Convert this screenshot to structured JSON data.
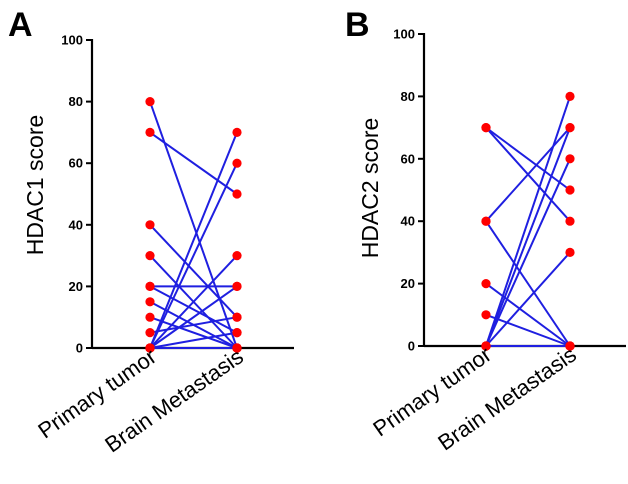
{
  "chart_data": [
    {
      "type": "line",
      "panel": "A",
      "ylabel": "HDAC1 score",
      "categories": [
        "Primary tumor",
        "Brain Metastasis"
      ],
      "ylim": [
        0,
        100
      ],
      "yticks": [
        0,
        20,
        40,
        60,
        80,
        100
      ],
      "grid": false,
      "legend": "none",
      "colors": {
        "line": "#1f1fe0",
        "point": "#ff0000",
        "axis": "#000000"
      },
      "pairs": [
        [
          80,
          0
        ],
        [
          70,
          50
        ],
        [
          40,
          10
        ],
        [
          30,
          0
        ],
        [
          20,
          20
        ],
        [
          20,
          5
        ],
        [
          15,
          0
        ],
        [
          10,
          0
        ],
        [
          5,
          10
        ],
        [
          0,
          70
        ],
        [
          0,
          60
        ],
        [
          0,
          30
        ],
        [
          0,
          20
        ],
        [
          0,
          5
        ],
        [
          0,
          0
        ]
      ]
    },
    {
      "type": "line",
      "panel": "B",
      "ylabel": "HDAC2 score",
      "categories": [
        "Primary tumor",
        "Brain Metastasis"
      ],
      "ylim": [
        0,
        100
      ],
      "yticks": [
        0,
        20,
        40,
        60,
        80,
        100
      ],
      "grid": false,
      "legend": "none",
      "colors": {
        "line": "#1f1fe0",
        "point": "#ff0000",
        "axis": "#000000"
      },
      "pairs": [
        [
          70,
          50
        ],
        [
          70,
          40
        ],
        [
          40,
          0
        ],
        [
          40,
          70
        ],
        [
          20,
          0
        ],
        [
          10,
          0
        ],
        [
          0,
          80
        ],
        [
          0,
          70
        ],
        [
          0,
          60
        ],
        [
          0,
          30
        ],
        [
          0,
          0
        ]
      ]
    }
  ]
}
